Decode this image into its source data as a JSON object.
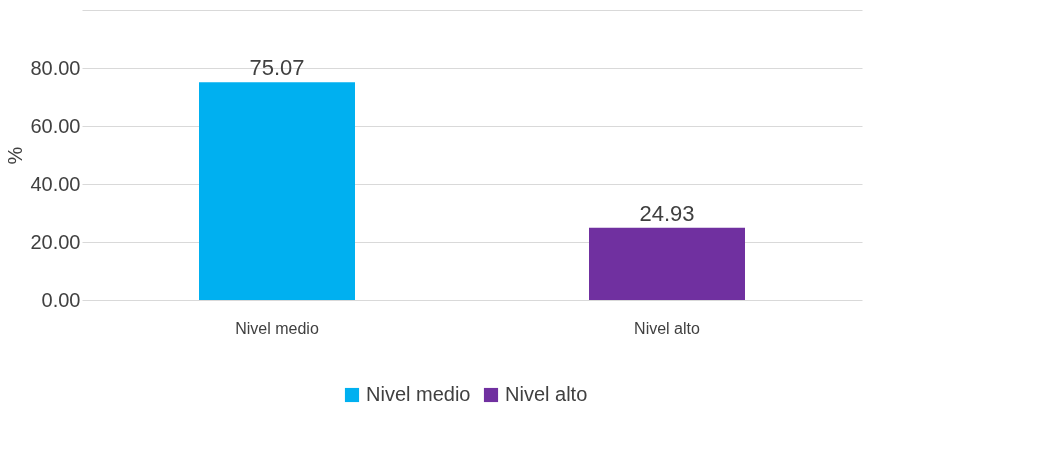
{
  "chart_data": {
    "type": "bar",
    "categories": [
      "Nivel medio",
      "Nivel alto"
    ],
    "series": [
      {
        "name": "Nivel medio",
        "color": "#00b0f0",
        "values": [
          75.07,
          null
        ]
      },
      {
        "name": "Nivel alto",
        "color": "#7030a0",
        "values": [
          null,
          24.93
        ]
      }
    ],
    "ylabel": "%",
    "ylim": [
      0,
      100
    ],
    "yticks": [
      {
        "value": 0,
        "label": "0.00"
      },
      {
        "value": 20,
        "label": "20.00"
      },
      {
        "value": 40,
        "label": "40.00"
      },
      {
        "value": 60,
        "label": "60.00"
      },
      {
        "value": 80,
        "label": "80.00"
      },
      {
        "value": 100,
        "label": null
      }
    ],
    "grid": "y",
    "legend": "bottom",
    "data_labels": true
  }
}
